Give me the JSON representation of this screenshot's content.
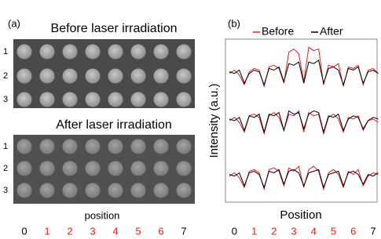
{
  "panel_a": {
    "label": "(a)",
    "images": [
      {
        "title": "Before laser irradiation",
        "rows": [
          "1",
          "2",
          "3"
        ]
      },
      {
        "title": "After laser irradiation",
        "rows": [
          "1",
          "2",
          "3"
        ]
      }
    ],
    "x_label": "position",
    "positions": [
      "0",
      "1",
      "2",
      "3",
      "4",
      "5",
      "6",
      "7"
    ],
    "position_colors": [
      "#000000",
      "#e02020",
      "#e02020",
      "#e02020",
      "#e02020",
      "#e02020",
      "#e02020",
      "#000000"
    ]
  },
  "chart_data": {
    "type": "line",
    "label": "(b)",
    "x_label": "Position",
    "y_label": "Intensity (a.u.)",
    "x": [
      -0.25,
      0,
      0.25,
      0.5,
      0.75,
      1,
      1.25,
      1.5,
      1.75,
      2,
      2.25,
      2.5,
      2.75,
      3,
      3.25,
      3.5,
      3.75,
      4,
      4.25,
      4.5,
      4.75,
      5,
      5.25,
      5.5,
      5.75,
      6,
      6.25,
      6.5,
      6.75,
      7,
      7.25
    ],
    "xlim": [
      -0.45,
      7.2
    ],
    "ylim": [
      0,
      10
    ],
    "xticks": [
      0,
      1,
      2,
      3,
      4,
      5,
      6,
      7
    ],
    "xtick_colors": [
      "#000000",
      "#e02020",
      "#e02020",
      "#e02020",
      "#e02020",
      "#e02020",
      "#e02020",
      "#000000"
    ],
    "series": [
      {
        "name": "Before",
        "color": "#e02020",
        "traces": [
          [
            7.9,
            8.1,
            7.8,
            7.2,
            8.0,
            8.2,
            8.1,
            7.1,
            8.3,
            8.4,
            8.2,
            7.3,
            9.2,
            9.4,
            9.1,
            7.4,
            9.5,
            9.3,
            9.4,
            7.2,
            8.4,
            8.3,
            8.5,
            7.1,
            8.3,
            8.2,
            8.4,
            7.2,
            8.1,
            8.2,
            7.9
          ],
          [
            5.0,
            5.2,
            4.9,
            4.3,
            5.3,
            5.4,
            5.2,
            4.2,
            5.3,
            5.5,
            5.2,
            4.4,
            5.4,
            5.3,
            5.6,
            4.3,
            5.5,
            5.3,
            5.4,
            4.2,
            5.2,
            5.4,
            5.1,
            4.3,
            5.2,
            5.1,
            5.3,
            4.4,
            5.0,
            5.1,
            4.9
          ],
          [
            1.6,
            1.8,
            1.5,
            0.9,
            1.9,
            2.0,
            1.8,
            0.8,
            2.0,
            2.1,
            1.9,
            1.0,
            2.1,
            1.9,
            2.2,
            0.9,
            2.0,
            2.2,
            1.9,
            0.8,
            1.8,
            2.0,
            1.7,
            0.9,
            1.9,
            1.7,
            2.0,
            1.0,
            1.6,
            1.8,
            1.7
          ]
        ]
      },
      {
        "name": "After",
        "color": "#000000",
        "traces": [
          [
            8.0,
            7.9,
            8.1,
            7.3,
            7.9,
            8.1,
            8.0,
            7.2,
            8.2,
            8.1,
            8.3,
            7.4,
            8.5,
            8.4,
            8.6,
            7.3,
            8.6,
            8.5,
            8.7,
            7.3,
            8.2,
            8.3,
            8.1,
            7.2,
            8.2,
            8.1,
            8.3,
            7.3,
            8.0,
            8.1,
            7.9
          ],
          [
            5.1,
            5.0,
            5.2,
            4.4,
            5.3,
            5.2,
            5.4,
            4.3,
            5.4,
            5.3,
            5.5,
            4.4,
            5.6,
            5.4,
            5.5,
            4.5,
            5.4,
            5.6,
            5.5,
            4.3,
            5.3,
            5.2,
            5.4,
            4.4,
            5.1,
            5.3,
            5.2,
            4.5,
            5.0,
            5.2,
            5.1
          ],
          [
            1.7,
            1.6,
            1.8,
            1.0,
            1.8,
            1.9,
            1.7,
            0.9,
            1.9,
            1.8,
            2.0,
            1.1,
            1.9,
            2.0,
            1.8,
            1.0,
            1.8,
            1.9,
            2.0,
            0.9,
            1.7,
            1.8,
            1.9,
            1.0,
            1.8,
            1.9,
            1.7,
            1.1,
            1.7,
            1.6,
            1.8
          ]
        ]
      }
    ]
  }
}
